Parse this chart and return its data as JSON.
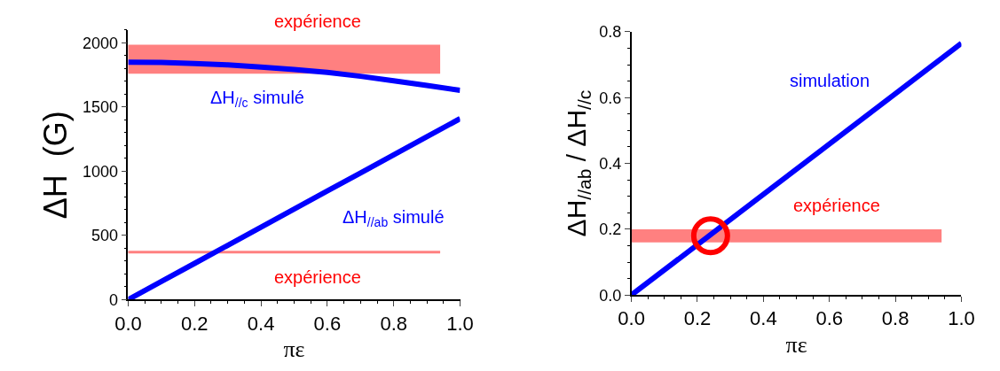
{
  "chart_data": [
    {
      "type": "line",
      "xlabel": "πε",
      "ylabel": "ΔH  (G)",
      "x": [
        0,
        0.1,
        0.2,
        0.3,
        0.4,
        0.5,
        0.6,
        0.7,
        0.8,
        0.9,
        1.0
      ],
      "series": [
        {
          "name": "ΔH$_{//c}$ simulé",
          "color": "#0000ff",
          "values": [
            1850,
            1848,
            1840,
            1828,
            1812,
            1793,
            1770,
            1740,
            1705,
            1668,
            1630
          ]
        },
        {
          "name": "ΔH$_{//ab}$ simulé",
          "color": "#0000ff",
          "values": [
            0,
            141,
            282,
            423,
            564,
            705,
            846,
            987,
            1128,
            1269,
            1410
          ]
        }
      ],
      "bands": [
        {
          "axis": "y",
          "from": 1760,
          "to": 1985,
          "color": "#ff8080",
          "label": "expérience"
        },
        {
          "axis": "y",
          "from": 360,
          "to": 380,
          "color": "#ff8080",
          "label": "expérience"
        }
      ],
      "xlim": [
        0,
        1
      ],
      "xticks": [
        {
          "value": 0,
          "label": "0.0"
        },
        {
          "value": 0.2,
          "label": "0.2"
        },
        {
          "value": 0.4,
          "label": "0.4"
        },
        {
          "value": 0.6,
          "label": "0.6"
        },
        {
          "value": 0.8,
          "label": "0.8"
        },
        {
          "value": 1,
          "label": "1.0"
        }
      ],
      "ylim": [
        0,
        2100
      ],
      "yticks": [
        0,
        500,
        1000,
        1500,
        2000
      ],
      "grid": false
    },
    {
      "type": "line",
      "xlabel": "πε",
      "ylabel": "ΔH$_{//ab}$ / ΔH$_{//c}$",
      "x": [
        0,
        1.0
      ],
      "series": [
        {
          "name": "simulation",
          "color": "#0000ff",
          "values": [
            0,
            0.765
          ]
        },
        {
          "type": "scatter",
          "marker": "circle",
          "color": "#ff0000",
          "x": [
            0.24
          ],
          "values": [
            0.18
          ]
        }
      ],
      "bands": [
        {
          "axis": "y",
          "from": 0.16,
          "to": 0.2,
          "color": "#ff8080",
          "label": "expérience"
        }
      ],
      "xlim": [
        0,
        1
      ],
      "xticks": [
        {
          "value": 0,
          "label": "0.0"
        },
        {
          "value": 0.2,
          "label": "0.2"
        },
        {
          "value": 0.4,
          "label": "0.4"
        },
        {
          "value": 0.6,
          "label": "0.6"
        },
        {
          "value": 0.8,
          "label": "0.8"
        },
        {
          "value": 1,
          "label": "1.0"
        }
      ],
      "ylim": [
        0,
        0.8
      ],
      "yticks": [
        {
          "value": 0,
          "label": "0.0"
        },
        {
          "value": 0.2,
          "label": "0.2"
        },
        {
          "value": 0.4,
          "label": "0.4"
        },
        {
          "value": 0.6,
          "label": "0.6"
        },
        {
          "value": 0.8,
          "label": "0.8"
        }
      ],
      "grid": false
    }
  ]
}
